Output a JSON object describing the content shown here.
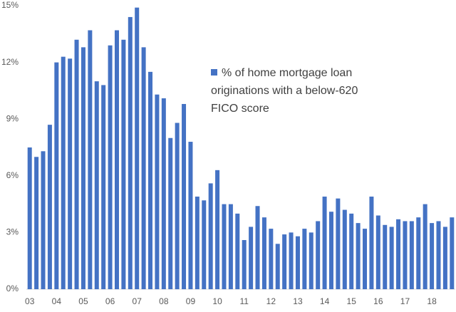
{
  "chart_data": {
    "type": "bar",
    "categories": [
      "03",
      null,
      null,
      null,
      "04",
      null,
      null,
      null,
      "05",
      null,
      null,
      null,
      "06",
      null,
      null,
      null,
      "07",
      null,
      null,
      null,
      "08",
      null,
      null,
      null,
      "09",
      null,
      null,
      null,
      "10",
      null,
      null,
      null,
      "11",
      null,
      null,
      null,
      "12",
      null,
      null,
      null,
      "13",
      null,
      null,
      null,
      "14",
      null,
      null,
      null,
      "15",
      null,
      null,
      null,
      "16",
      null,
      null,
      null,
      "17",
      null,
      null,
      null,
      "18",
      null,
      null,
      null
    ],
    "series": [
      {
        "name": "% of home mortgage loan originations with a below-620 FICO score",
        "color": "#4472c4",
        "values": [
          7.5,
          7.0,
          7.3,
          8.7,
          12.0,
          12.3,
          12.2,
          13.2,
          12.8,
          13.7,
          11.0,
          10.8,
          12.9,
          13.7,
          13.2,
          14.4,
          14.9,
          12.8,
          11.5,
          10.3,
          10.1,
          8.0,
          8.8,
          9.8,
          7.8,
          4.9,
          4.7,
          5.6,
          6.3,
          4.5,
          4.5,
          4.0,
          2.6,
          3.3,
          4.4,
          3.8,
          3.2,
          2.4,
          2.9,
          3.0,
          2.8,
          3.2,
          3.0,
          3.6,
          4.9,
          4.1,
          4.8,
          4.2,
          4.0,
          3.5,
          3.2,
          4.9,
          3.9,
          3.4,
          3.3,
          3.7,
          3.6,
          3.6,
          3.8,
          4.5,
          3.5,
          3.6,
          3.3,
          3.8
        ]
      }
    ],
    "ylim": [
      0,
      15
    ],
    "yticks": [
      {
        "value": 0,
        "label": "0%"
      },
      {
        "value": 3,
        "label": "3%"
      },
      {
        "value": 6,
        "label": "6%"
      },
      {
        "value": 9,
        "label": "9%"
      },
      {
        "value": 12,
        "label": "12%"
      },
      {
        "value": 15,
        "label": "15%"
      }
    ],
    "grid": false,
    "legend": "upper right"
  }
}
